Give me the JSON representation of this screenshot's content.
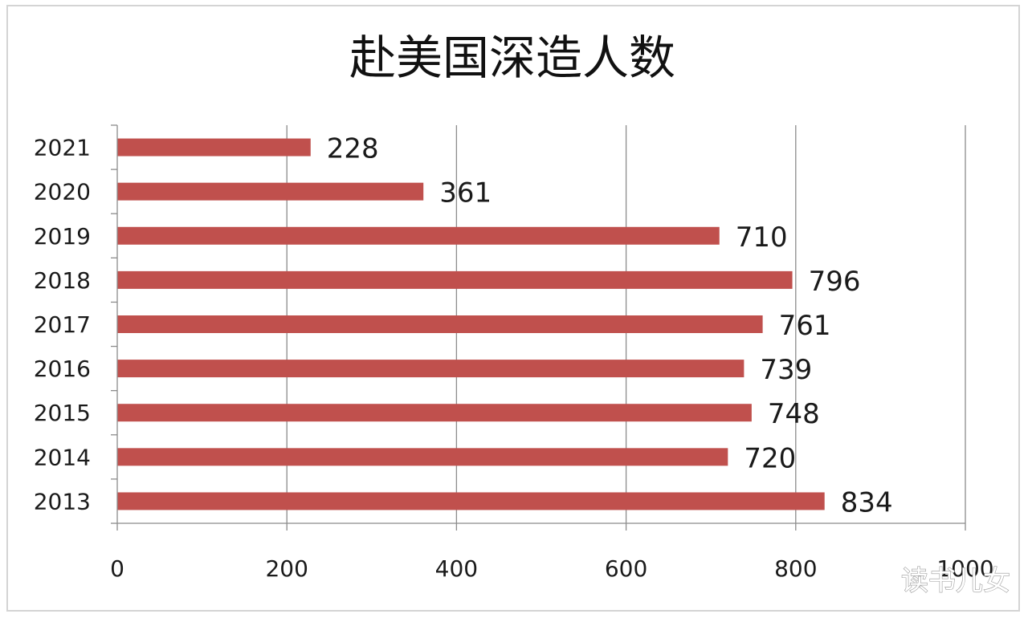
{
  "chart_data": {
    "type": "bar",
    "orientation": "horizontal",
    "title": "赴美国深造人数",
    "categories": [
      "2021",
      "2020",
      "2019",
      "2018",
      "2017",
      "2016",
      "2015",
      "2014",
      "2013"
    ],
    "values": [
      228,
      361,
      710,
      796,
      761,
      739,
      748,
      720,
      834
    ],
    "xlim": [
      0,
      1000
    ],
    "x_ticks": [
      "0",
      "200",
      "400",
      "600",
      "800",
      "1000"
    ],
    "grid": "vertical",
    "bar_color": "#c0504d",
    "data_labels": true
  },
  "watermark": "读书儿女"
}
